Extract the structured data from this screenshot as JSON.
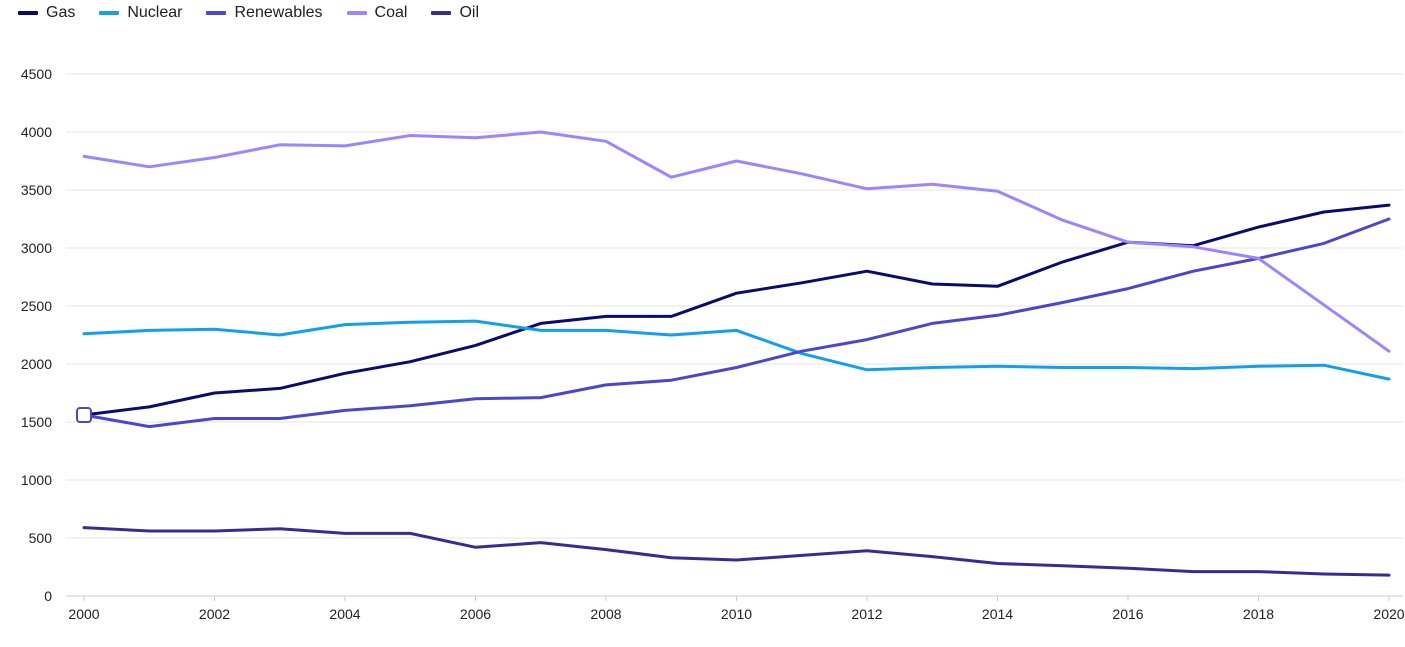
{
  "chart_data": {
    "type": "line",
    "title": "",
    "xlabel": "",
    "ylabel": "",
    "x": [
      2000,
      2001,
      2002,
      2003,
      2004,
      2005,
      2006,
      2007,
      2008,
      2009,
      2010,
      2011,
      2012,
      2013,
      2014,
      2015,
      2016,
      2017,
      2018,
      2019,
      2020
    ],
    "xticks": [
      "2000",
      "2002",
      "2004",
      "2006",
      "2008",
      "2010",
      "2012",
      "2014",
      "2016",
      "2018",
      "2020"
    ],
    "yticks": [
      "0",
      "500",
      "1000",
      "1500",
      "2000",
      "2500",
      "3000",
      "3500",
      "4000",
      "4500"
    ],
    "ylim": [
      0,
      4500
    ],
    "grid": true,
    "legend_position": "top-left",
    "series": [
      {
        "name": "Gas",
        "color": "#0b0b6e",
        "values": [
          1560,
          1630,
          1750,
          1790,
          1920,
          2020,
          2160,
          2350,
          2410,
          2410,
          2610,
          2700,
          2800,
          2690,
          2670,
          2880,
          3050,
          3020,
          3180,
          3310,
          3370
        ]
      },
      {
        "name": "Nuclear",
        "color": "#139ff0",
        "values": [
          2260,
          2290,
          2300,
          2250,
          2340,
          2360,
          2370,
          2290,
          2290,
          2250,
          2290,
          2090,
          1950,
          1970,
          1980,
          1970,
          1970,
          1960,
          1980,
          1990,
          1870
        ]
      },
      {
        "name": "Renewables",
        "color": "#4d45cc",
        "values": [
          1560,
          1460,
          1530,
          1530,
          1600,
          1640,
          1700,
          1710,
          1820,
          1860,
          1970,
          2110,
          2210,
          2350,
          2420,
          2530,
          2650,
          2800,
          2910,
          3040,
          3250
        ]
      },
      {
        "name": "Coal",
        "color": "#9c85ff",
        "values": [
          3790,
          3700,
          3780,
          3890,
          3880,
          3970,
          3950,
          4000,
          3920,
          3610,
          3750,
          3640,
          3510,
          3550,
          3490,
          3240,
          3050,
          3010,
          2910,
          2510,
          2110
        ]
      },
      {
        "name": "Oil",
        "color": "#3b2a96",
        "values": [
          590,
          560,
          560,
          580,
          540,
          540,
          420,
          460,
          400,
          330,
          310,
          350,
          390,
          340,
          280,
          260,
          240,
          210,
          210,
          190,
          180
        ]
      }
    ]
  }
}
